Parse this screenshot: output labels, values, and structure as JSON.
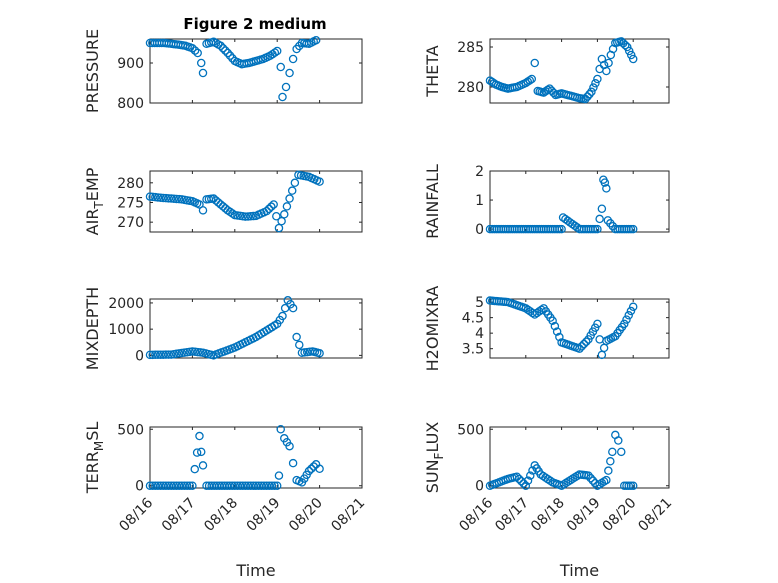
{
  "figure_title": "Figure 2 medium",
  "marker_color": "#0072BD",
  "chart_data": [
    {
      "type": "scatter",
      "ylabel": "PRESSURE",
      "title": "Figure 2 medium",
      "xlim": [
        "08/16",
        "08/21"
      ],
      "ylim": [
        800,
        960
      ],
      "yticks": [
        800,
        900
      ],
      "x_tick_labels": [],
      "grid": true,
      "points": [
        [
          "08/16 00:00",
          950
        ],
        [
          "08/16 04:00",
          950
        ],
        [
          "08/16 08:00",
          950
        ],
        [
          "08/16 12:00",
          948
        ],
        [
          "08/16 16:00",
          946
        ],
        [
          "08/16 20:00",
          943
        ],
        [
          "08/17 00:00",
          937
        ],
        [
          "08/17 03:00",
          925
        ],
        [
          "08/17 05:00",
          900
        ],
        [
          "08/17 06:00",
          875
        ],
        [
          "08/17 08:00",
          948
        ],
        [
          "08/17 12:00",
          953
        ],
        [
          "08/17 16:00",
          943
        ],
        [
          "08/17 20:00",
          925
        ],
        [
          "08/18 00:00",
          905
        ],
        [
          "08/18 04:00",
          897
        ],
        [
          "08/18 08:00",
          900
        ],
        [
          "08/18 12:00",
          905
        ],
        [
          "08/18 16:00",
          910
        ],
        [
          "08/18 20:00",
          918
        ],
        [
          "08/19 00:00",
          930
        ],
        [
          "08/19 02:00",
          890
        ],
        [
          "08/19 03:00",
          815
        ],
        [
          "08/19 05:00",
          840
        ],
        [
          "08/19 07:00",
          875
        ],
        [
          "08/19 09:00",
          910
        ],
        [
          "08/19 11:00",
          935
        ],
        [
          "08/19 14:00",
          950
        ],
        [
          "08/19 18:00",
          948
        ],
        [
          "08/19 22:00",
          957
        ]
      ]
    },
    {
      "type": "scatter",
      "ylabel": "THETA",
      "xlim": [
        "08/16",
        "08/21"
      ],
      "ylim": [
        278,
        286
      ],
      "yticks": [
        280,
        285
      ],
      "x_tick_labels": [],
      "grid": true,
      "points": [
        [
          "08/16 00:00",
          280.8
        ],
        [
          "08/16 04:00",
          280.3
        ],
        [
          "08/16 08:00",
          280
        ],
        [
          "08/16 12:00",
          279.8
        ],
        [
          "08/16 18:00",
          280
        ],
        [
          "08/17 00:00",
          280.5
        ],
        [
          "08/17 04:00",
          281
        ],
        [
          "08/17 06:00",
          283
        ],
        [
          "08/17 08:00",
          279.5
        ],
        [
          "08/17 12:00",
          279.3
        ],
        [
          "08/17 16:00",
          279.8
        ],
        [
          "08/17 20:00",
          279
        ],
        [
          "08/18 00:00",
          279.2
        ],
        [
          "08/18 06:00",
          278.9
        ],
        [
          "08/18 12:00",
          278.6
        ],
        [
          "08/18 16:00",
          278.5
        ],
        [
          "08/18 20:00",
          279.4
        ],
        [
          "08/19 00:00",
          281
        ],
        [
          "08/19 03:00",
          283.5
        ],
        [
          "08/19 06:00",
          282
        ],
        [
          "08/19 09:00",
          284
        ],
        [
          "08/19 12:00",
          285.5
        ],
        [
          "08/19 16:00",
          285.7
        ],
        [
          "08/19 20:00",
          285
        ],
        [
          "08/20 00:00",
          283.5
        ]
      ]
    },
    {
      "type": "scatter",
      "ylabel": "AIR_TEMP",
      "ylabel_main": "AIR",
      "ylabel_sub": "T",
      "ylabel_rest": "EMP",
      "xlim": [
        "08/16",
        "08/21"
      ],
      "ylim": [
        267.5,
        283
      ],
      "yticks": [
        270,
        275,
        280
      ],
      "x_tick_labels": [],
      "grid": true,
      "points": [
        [
          "08/16 00:00",
          276.5
        ],
        [
          "08/16 06:00",
          276.2
        ],
        [
          "08/16 12:00",
          276
        ],
        [
          "08/16 18:00",
          275.8
        ],
        [
          "08/17 00:00",
          275.3
        ],
        [
          "08/17 04:00",
          274.5
        ],
        [
          "08/17 06:00",
          273
        ],
        [
          "08/17 08:00",
          275.8
        ],
        [
          "08/17 12:00",
          276
        ],
        [
          "08/17 16:00",
          274.5
        ],
        [
          "08/17 20:00",
          273
        ],
        [
          "08/18 00:00",
          271.8
        ],
        [
          "08/18 06:00",
          271.4
        ],
        [
          "08/18 12:00",
          271.6
        ],
        [
          "08/18 18:00",
          272.8
        ],
        [
          "08/18 22:00",
          274.5
        ],
        [
          "08/19 01:00",
          268.5
        ],
        [
          "08/19 04:00",
          272
        ],
        [
          "08/19 07:00",
          276
        ],
        [
          "08/19 10:00",
          280
        ],
        [
          "08/19 12:00",
          282
        ],
        [
          "08/19 18:00",
          281.5
        ],
        [
          "08/20 00:00",
          280.3
        ]
      ]
    },
    {
      "type": "scatter",
      "ylabel": "RAINFALL",
      "xlim": [
        "08/16",
        "08/21"
      ],
      "ylim": [
        -0.1,
        2
      ],
      "yticks": [
        0,
        1,
        2
      ],
      "x_tick_labels": [],
      "grid": true,
      "points": [
        [
          "08/16 00:00",
          0
        ],
        [
          "08/16 12:00",
          0
        ],
        [
          "08/17 00:00",
          0
        ],
        [
          "08/17 12:00",
          0
        ],
        [
          "08/18 00:00",
          0
        ],
        [
          "08/18 01:00",
          0.4
        ],
        [
          "08/18 12:00",
          0
        ],
        [
          "08/19 00:00",
          0
        ],
        [
          "08/19 03:00",
          0.7
        ],
        [
          "08/19 04:00",
          1.7
        ],
        [
          "08/19 05:00",
          1.6
        ],
        [
          "08/19 06:00",
          1.4
        ],
        [
          "08/19 07:00",
          0.3
        ],
        [
          "08/19 12:00",
          0
        ],
        [
          "08/20 00:00",
          0
        ]
      ]
    },
    {
      "type": "scatter",
      "ylabel": "MIXDEPTH",
      "xlim": [
        "08/16",
        "08/21"
      ],
      "ylim": [
        -100,
        2150
      ],
      "yticks": [
        0,
        1000,
        2000
      ],
      "x_tick_labels": [],
      "grid": true,
      "points": [
        [
          "08/16 00:00",
          20
        ],
        [
          "08/16 12:00",
          30
        ],
        [
          "08/17 00:00",
          150
        ],
        [
          "08/17 06:00",
          100
        ],
        [
          "08/17 12:00",
          0
        ],
        [
          "08/18 00:00",
          300
        ],
        [
          "08/18 12:00",
          700
        ],
        [
          "08/19 00:00",
          1200
        ],
        [
          "08/19 03:00",
          1500
        ],
        [
          "08/19 06:00",
          2100
        ],
        [
          "08/19 09:00",
          1800
        ],
        [
          "08/19 11:00",
          700
        ],
        [
          "08/19 14:00",
          100
        ],
        [
          "08/19 20:00",
          150
        ],
        [
          "08/20 00:00",
          80
        ]
      ]
    },
    {
      "type": "scatter",
      "ylabel": "H2OMIXRA",
      "xlim": [
        "08/16",
        "08/21"
      ],
      "ylim": [
        3.2,
        5.1
      ],
      "yticks": [
        3.5,
        4,
        4.5,
        5
      ],
      "x_tick_labels": [],
      "grid": true,
      "points": [
        [
          "08/16 00:00",
          5.05
        ],
        [
          "08/16 12:00",
          5
        ],
        [
          "08/17 00:00",
          4.8
        ],
        [
          "08/17 06:00",
          4.6
        ],
        [
          "08/17 12:00",
          4.8
        ],
        [
          "08/17 18:00",
          4.4
        ],
        [
          "08/18 00:00",
          3.7
        ],
        [
          "08/18 06:00",
          3.6
        ],
        [
          "08/18 12:00",
          3.5
        ],
        [
          "08/18 18:00",
          3.8
        ],
        [
          "08/19 00:00",
          4.3
        ],
        [
          "08/19 03:00",
          3.3
        ],
        [
          "08/19 06:00",
          3.75
        ],
        [
          "08/19 12:00",
          3.9
        ],
        [
          "08/19 18:00",
          4.3
        ],
        [
          "08/20 00:00",
          4.85
        ]
      ]
    },
    {
      "type": "scatter",
      "ylabel": "TERR_MSL",
      "ylabel_main": "TERR",
      "ylabel_sub": "M",
      "ylabel_rest": "SL",
      "xlim": [
        "08/16",
        "08/21"
      ],
      "ylim": [
        -20,
        520
      ],
      "yticks": [
        0,
        500
      ],
      "x_tick_labels": [
        "08/16",
        "08/17",
        "08/18",
        "08/19",
        "08/20",
        "08/21"
      ],
      "xlabel": "Time",
      "grid": true,
      "points": [
        [
          "08/16 00:00",
          0
        ],
        [
          "08/16 12:00",
          0
        ],
        [
          "08/17 00:00",
          0
        ],
        [
          "08/17 04:00",
          440
        ],
        [
          "08/17 05:00",
          300
        ],
        [
          "08/17 06:00",
          180
        ],
        [
          "08/17 08:00",
          0
        ],
        [
          "08/18 00:00",
          0
        ],
        [
          "08/18 12:00",
          0
        ],
        [
          "08/19 00:00",
          0
        ],
        [
          "08/19 01:00",
          90
        ],
        [
          "08/19 02:00",
          500
        ],
        [
          "08/19 04:00",
          420
        ],
        [
          "08/19 07:00",
          350
        ],
        [
          "08/19 09:00",
          200
        ],
        [
          "08/19 11:00",
          50
        ],
        [
          "08/19 14:00",
          30
        ],
        [
          "08/19 18:00",
          130
        ],
        [
          "08/19 22:00",
          190
        ],
        [
          "08/20 00:00",
          150
        ]
      ]
    },
    {
      "type": "scatter",
      "ylabel": "SUN_FLUX",
      "ylabel_main": "SUN",
      "ylabel_sub": "F",
      "ylabel_rest": "LUX",
      "xlim": [
        "08/16",
        "08/21"
      ],
      "ylim": [
        -20,
        520
      ],
      "yticks": [
        0,
        500
      ],
      "x_tick_labels": [
        "08/16",
        "08/17",
        "08/18",
        "08/19",
        "08/20",
        "08/21"
      ],
      "xlabel": "Time",
      "grid": true,
      "points": [
        [
          "08/16 00:00",
          0
        ],
        [
          "08/16 12:00",
          60
        ],
        [
          "08/16 18:00",
          80
        ],
        [
          "08/17 00:00",
          0
        ],
        [
          "08/17 06:00",
          180
        ],
        [
          "08/17 10:00",
          100
        ],
        [
          "08/17 18:00",
          30
        ],
        [
          "08/18 00:00",
          0
        ],
        [
          "08/18 12:00",
          100
        ],
        [
          "08/18 18:00",
          90
        ],
        [
          "08/19 00:00",
          0
        ],
        [
          "08/19 06:00",
          50
        ],
        [
          "08/19 10:00",
          300
        ],
        [
          "08/19 12:00",
          450
        ],
        [
          "08/19 14:00",
          400
        ],
        [
          "08/19 16:00",
          300
        ],
        [
          "08/19 18:00",
          0
        ],
        [
          "08/20 00:00",
          0
        ]
      ]
    }
  ]
}
